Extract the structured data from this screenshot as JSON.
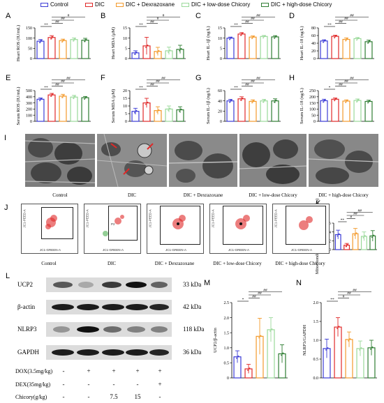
{
  "legend": {
    "items": [
      {
        "label": "Control",
        "color": "#3b3bd6"
      },
      {
        "label": "DIC",
        "color": "#e02828"
      },
      {
        "label": "DIC + Dexrazoxane",
        "color": "#f39a2b"
      },
      {
        "label": "DIC + low-dose Chicory",
        "color": "#9ad99a"
      },
      {
        "label": "DIC + high-dose Chicory",
        "color": "#2e7d32"
      }
    ]
  },
  "panel_labels": {
    "A": "A",
    "B": "B",
    "C": "C",
    "D": "D",
    "E": "E",
    "F": "F",
    "G": "G",
    "H": "H",
    "I": "I",
    "J": "J",
    "K": "K",
    "L": "L",
    "M": "M",
    "N": "N"
  },
  "tem": {
    "captions": [
      "Control",
      "DIC",
      "DIC + Dexrazoxane",
      "DIC + low-dose Chicory",
      "DIC + high-dose Chicory"
    ]
  },
  "flow": {
    "captions": [
      "Control",
      "DIC",
      "DIC + Dexrazoxane",
      "DIC + low-dose Chicory",
      "DIC + high-dose Chicory"
    ],
    "y_axis_label": "JC1-PEED-A",
    "x_axis_label": "JC1-GREEN-A",
    "gate_label": "P2",
    "x_ticks": [
      "-1,427",
      "-21,5"
    ]
  },
  "western_blot": {
    "rows": [
      {
        "protein": "UCP2",
        "kda": "33 kDa"
      },
      {
        "protein": "β-actin",
        "kda": "42 kDa"
      },
      {
        "protein": "NLRP3",
        "kda": "118 kDa"
      },
      {
        "protein": "GAPDH",
        "kda": "36 kDa"
      }
    ],
    "conditions": [
      {
        "label": "DOX(3.5mg/kg)",
        "values": [
          "-",
          "+",
          "+",
          "+",
          "+"
        ]
      },
      {
        "label": "DEX(35mg/kg)",
        "values": [
          "-",
          "-",
          "-",
          "-",
          "+"
        ]
      },
      {
        "label": "Chicory(g/kg)",
        "values": [
          "-",
          "-",
          "7.5",
          "15",
          "-"
        ]
      }
    ]
  },
  "chart_data": [
    {
      "id": "A",
      "type": "bar",
      "ylabel": "Heart ROS (IU/mL)",
      "ylim": [
        0,
        150
      ],
      "yticks": [
        "0",
        "50",
        "100",
        "150"
      ],
      "values": [
        85,
        103,
        88,
        93,
        90
      ],
      "errors": [
        8,
        9,
        7,
        8,
        9
      ],
      "sig_labels": [
        "**",
        "##",
        "##",
        "#"
      ]
    },
    {
      "id": "B",
      "type": "bar",
      "ylabel": "Heart MDA (μM)",
      "ylim": [
        0,
        15
      ],
      "yticks": [
        "0",
        "5",
        "10",
        "15"
      ],
      "values": [
        2.8,
        6.2,
        3.5,
        3.8,
        4.5
      ],
      "errors": [
        1.0,
        4.2,
        2.0,
        1.8,
        2.0
      ],
      "sig_labels": [
        "**",
        "##",
        "#",
        "#"
      ]
    },
    {
      "id": "C",
      "type": "bar",
      "ylabel": "Heart IL-1β (ng/L)",
      "ylim": [
        0,
        15
      ],
      "yticks": [
        "0",
        "5",
        "10",
        "15"
      ],
      "values": [
        10.0,
        12.0,
        10.5,
        10.8,
        10.6
      ],
      "errors": [
        0.5,
        0.7,
        0.6,
        0.5,
        0.6
      ],
      "sig_labels": [
        "**",
        "##",
        "##",
        "##"
      ]
    },
    {
      "id": "D",
      "type": "bar",
      "ylabel": "Heart IL-18 (ng/L)",
      "ylim": [
        0,
        80
      ],
      "yticks": [
        "0",
        "20",
        "40",
        "60",
        "80"
      ],
      "values": [
        46,
        58,
        50,
        52,
        44
      ],
      "errors": [
        3,
        3,
        4,
        3,
        4
      ],
      "sig_labels": [
        "**",
        "##",
        "##",
        "##"
      ]
    },
    {
      "id": "E",
      "type": "bar",
      "ylabel": "Serum ROS (IU/mL)",
      "ylim": [
        0,
        500
      ],
      "yticks": [
        "0",
        "100",
        "200",
        "300",
        "400",
        "500"
      ],
      "values": [
        360,
        430,
        410,
        395,
        385
      ],
      "errors": [
        20,
        25,
        30,
        28,
        20
      ],
      "sig_labels": [
        "**",
        "##",
        "##",
        "##"
      ]
    },
    {
      "id": "F",
      "type": "bar",
      "ylabel": "Serum MDA (μM)",
      "ylim": [
        0,
        20
      ],
      "yticks": [
        "0",
        "5",
        "10",
        "15",
        "20"
      ],
      "values": [
        6.5,
        12.0,
        7.0,
        8.0,
        7.5
      ],
      "errors": [
        2.0,
        3.0,
        2.5,
        2.0,
        2.0
      ],
      "sig_labels": [
        "**",
        "##",
        "##",
        "##"
      ]
    },
    {
      "id": "G",
      "type": "bar",
      "ylabel": "Serum IL-1β (ng/L)",
      "ylim": [
        0,
        60
      ],
      "yticks": [
        "0",
        "20",
        "40",
        "60"
      ],
      "values": [
        40,
        44,
        39,
        40,
        40
      ],
      "errors": [
        3,
        4,
        3,
        3,
        4
      ],
      "sig_labels": [
        "**",
        "##",
        "##",
        "##"
      ]
    },
    {
      "id": "H",
      "type": "bar",
      "ylabel": "Serum IL-18 (ng/L)",
      "ylim": [
        0,
        250
      ],
      "yticks": [
        "0",
        "50",
        "100",
        "150",
        "200",
        "250"
      ],
      "values": [
        168,
        180,
        165,
        170,
        162
      ],
      "errors": [
        12,
        10,
        10,
        12,
        10
      ],
      "sig_labels": [
        "*",
        "##",
        "##",
        "##"
      ]
    },
    {
      "id": "K",
      "type": "bar",
      "ylabel": "Mitochondrial membrane potential (ratio)",
      "ylim": [
        0,
        0.6
      ],
      "yticks": [
        "0.0",
        "0.2",
        "0.4",
        "0.6"
      ],
      "values": [
        0.34,
        0.1,
        0.36,
        0.3,
        0.31
      ],
      "errors": [
        0.1,
        0.04,
        0.12,
        0.1,
        0.12
      ],
      "sig_labels": [
        "**",
        "#",
        "##",
        "##"
      ]
    },
    {
      "id": "M",
      "type": "bar",
      "ylabel": "UCP2/β-actin",
      "ylim": [
        0,
        2.5
      ],
      "yticks": [
        "0",
        "0.5",
        "1.0",
        "1.5",
        "2.0",
        "2.5"
      ],
      "values": [
        0.7,
        0.3,
        1.38,
        1.6,
        0.8
      ],
      "errors": [
        0.2,
        0.15,
        0.6,
        0.4,
        0.3
      ],
      "sig_labels": [
        "*",
        "##",
        "##",
        "##"
      ]
    },
    {
      "id": "N",
      "type": "bar",
      "ylabel": "NLRP3/GAPDH",
      "ylim": [
        0,
        2.0
      ],
      "yticks": [
        "0.0",
        "0.5",
        "1.0",
        "1.5",
        "2.0"
      ],
      "values": [
        0.78,
        1.35,
        1.02,
        0.78,
        0.8
      ],
      "errors": [
        0.25,
        0.25,
        0.2,
        0.2,
        0.2
      ],
      "sig_labels": [
        "**",
        "#",
        "##",
        "##"
      ]
    }
  ]
}
